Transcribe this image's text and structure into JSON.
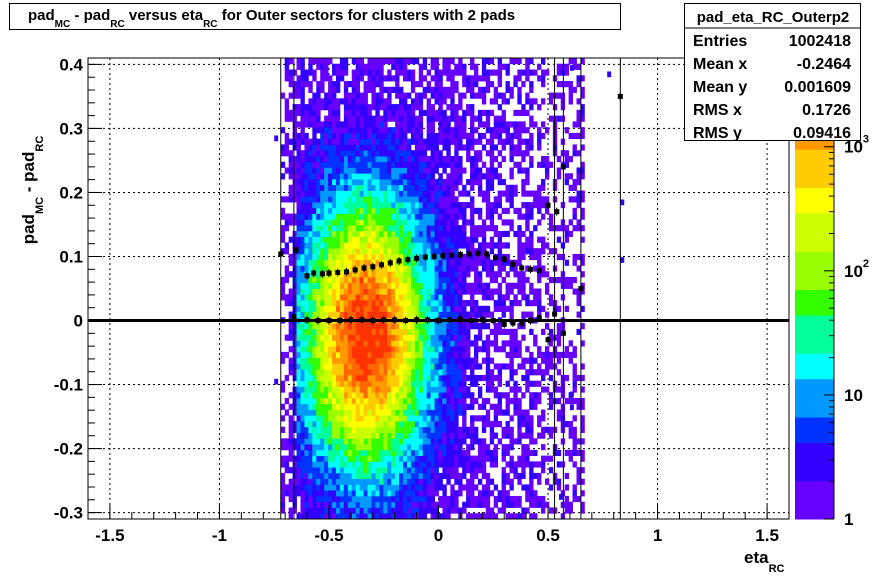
{
  "title": {
    "parts": [
      "pad",
      "MC",
      " - pad",
      "RC",
      " versus eta",
      "RC",
      " for Outer sectors for clusters with 2 pads"
    ]
  },
  "stats": {
    "name": "pad_eta_RC_Outerp2",
    "rows": [
      {
        "label": "Entries",
        "value": "1002418"
      },
      {
        "label": "Mean x",
        "value": "-0.2464"
      },
      {
        "label": "Mean y",
        "value": "0.001609"
      },
      {
        "label": "RMS x",
        "value": "0.1726"
      },
      {
        "label": "RMS y",
        "value": "0.09416"
      }
    ]
  },
  "chart_data": {
    "type": "heatmap",
    "title": "pad_MC - pad_RC versus eta_RC for Outer sectors for clusters with 2 pads",
    "xlabel": "eta_RC",
    "ylabel": "pad_MC - pad_RC",
    "xlim": [
      -1.6,
      1.6
    ],
    "ylim": [
      -0.31,
      0.41
    ],
    "x_ticks": [
      "-1.5",
      "-1",
      "-0.5",
      "0",
      "0.5",
      "1",
      "1.5"
    ],
    "y_ticks": [
      "-0.3",
      "-0.2",
      "-0.1",
      "0",
      "0.1",
      "0.2",
      "0.3",
      "0.4"
    ],
    "grid": true,
    "z_scale": "log",
    "z_ticks": [
      "1",
      "10",
      "10^2",
      "10^3"
    ],
    "z_range": [
      1,
      5000
    ],
    "colors": [
      "#6600ff",
      "#3300ff",
      "#0033ff",
      "#0099ff",
      "#00ffff",
      "#00ff99",
      "#33ff00",
      "#99ff00",
      "#ccff00",
      "#ffff00",
      "#ffcc00",
      "#ff9900",
      "#ff6600",
      "#ff3300"
    ],
    "density_core": {
      "x": -0.33,
      "y": -0.02
    },
    "vertical_lines_x": [
      -0.72,
      -0.66,
      0.53,
      0.57,
      0.65,
      0.83
    ],
    "zero_line_y": 0,
    "profile_upper": {
      "x": [
        -0.72,
        -0.65,
        -0.6,
        -0.57,
        -0.53,
        -0.5,
        -0.46,
        -0.42,
        -0.38,
        -0.34,
        -0.3,
        -0.26,
        -0.22,
        -0.18,
        -0.14,
        -0.1,
        -0.06,
        -0.02,
        0.02,
        0.06,
        0.1,
        0.14,
        0.18,
        0.22,
        0.26,
        0.3,
        0.34,
        0.38,
        0.42,
        0.46,
        0.5,
        0.54,
        0.57,
        0.65,
        0.83
      ],
      "y": [
        0.104,
        0.11,
        0.07,
        0.074,
        0.073,
        0.074,
        0.075,
        0.076,
        0.079,
        0.082,
        0.084,
        0.087,
        0.09,
        0.093,
        0.095,
        0.097,
        0.099,
        0.1,
        0.101,
        0.102,
        0.103,
        0.104,
        0.105,
        0.104,
        0.098,
        0.096,
        0.088,
        0.082,
        0.08,
        0.078,
        0.18,
        0.17,
        0.24,
        0.05,
        0.35
      ]
    },
    "profile_lower": {
      "x": [
        -0.66,
        -0.6,
        -0.55,
        -0.5,
        -0.45,
        -0.4,
        -0.35,
        -0.3,
        -0.25,
        -0.2,
        -0.15,
        -0.1,
        -0.05,
        0.0,
        0.05,
        0.1,
        0.15,
        0.2,
        0.25,
        0.3,
        0.34,
        0.38,
        0.42,
        0.46,
        0.5,
        0.53,
        0.57
      ],
      "y": [
        0.006,
        0.001,
        0.0,
        0.0,
        0.0,
        0.001,
        0.001,
        0.0,
        0.001,
        0.001,
        0.0,
        0.001,
        0.001,
        0.0,
        0.001,
        0.002,
        0.0,
        0.001,
        0.0,
        -0.006,
        -0.004,
        -0.005,
        0.0,
        0.004,
        -0.03,
        0.01,
        -0.02
      ]
    }
  }
}
